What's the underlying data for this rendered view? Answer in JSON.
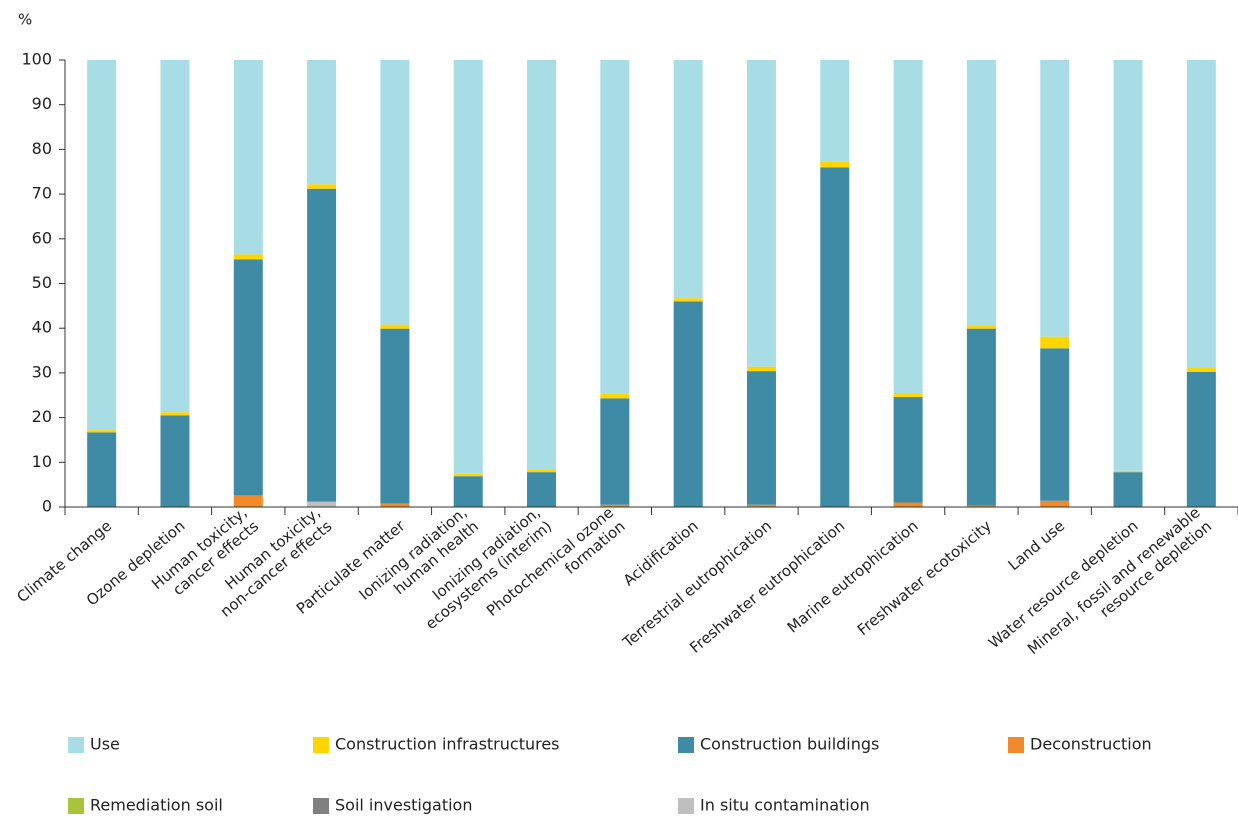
{
  "chart_data": {
    "type": "stacked_bar",
    "y_label": "%",
    "categories": [
      "Climate change",
      "Ozone depletion",
      "Human toxicity,\ncancer effects",
      "Human toxicity,\nnon-cancer effects",
      "Particulate matter",
      "Ionizing radiation,\nhuman health",
      "Ionizing radiation,\necosystems (interim)",
      "Photochemical ozone\nformation",
      "Acidification",
      "Terrestrial eutrophication",
      "Freshwater eutrophication",
      "Marine eutrophication",
      "Freshwater ecotoxicity",
      "Land use",
      "Water resource depletion",
      "Mineral, fossil and renewable\nresource depletion"
    ],
    "series": [
      {
        "name": "Use",
        "color": "#a8dde6",
        "values": [
          82.8,
          78.8,
          43.5,
          27.8,
          59.2,
          92.6,
          91.6,
          74.7,
          53.3,
          68.6,
          22.8,
          74.6,
          59.3,
          61.9,
          91.9,
          68.8
        ]
      },
      {
        "name": "Construction infrastructures",
        "color": "#ffd500",
        "values": [
          0.5,
          0.7,
          1.1,
          1.0,
          0.9,
          0.5,
          0.6,
          1.0,
          0.7,
          1.0,
          1.2,
          0.8,
          0.8,
          2.6,
          0.3,
          1.0
        ]
      },
      {
        "name": "Construction buildings",
        "color": "#3f8ba6",
        "values": [
          16.7,
          20.5,
          52.8,
          70.0,
          39.1,
          6.9,
          7.8,
          23.8,
          46.0,
          29.9,
          76.0,
          23.6,
          39.6,
          34.1,
          7.8,
          30.2
        ]
      },
      {
        "name": "Deconstruction",
        "color": "#f28a2a",
        "values": [
          0,
          0,
          2.6,
          0,
          0.8,
          0,
          0,
          0.5,
          0,
          0.5,
          0,
          1.0,
          0.3,
          1.4,
          0,
          0
        ]
      },
      {
        "name": "Remediation soil",
        "color": "#a8c43c",
        "values": [
          0,
          0,
          0,
          0,
          0,
          0,
          0,
          0,
          0,
          0,
          0,
          0,
          0,
          0,
          0,
          0
        ]
      },
      {
        "name": "Soil investigation",
        "color": "#808080",
        "values": [
          0,
          0,
          0,
          0,
          0,
          0,
          0,
          0,
          0,
          0,
          0,
          0,
          0,
          0,
          0,
          0
        ]
      },
      {
        "name": "In situ contamination",
        "color": "#bfbfbf",
        "values": [
          0,
          0,
          0,
          1.2,
          0,
          0,
          0,
          0,
          0,
          0,
          0,
          0,
          0,
          0,
          0,
          0
        ]
      }
    ],
    "ylim": [
      0,
      100
    ],
    "yticks": [
      0,
      10,
      20,
      30,
      40,
      50,
      60,
      70,
      80,
      90,
      100
    ]
  }
}
